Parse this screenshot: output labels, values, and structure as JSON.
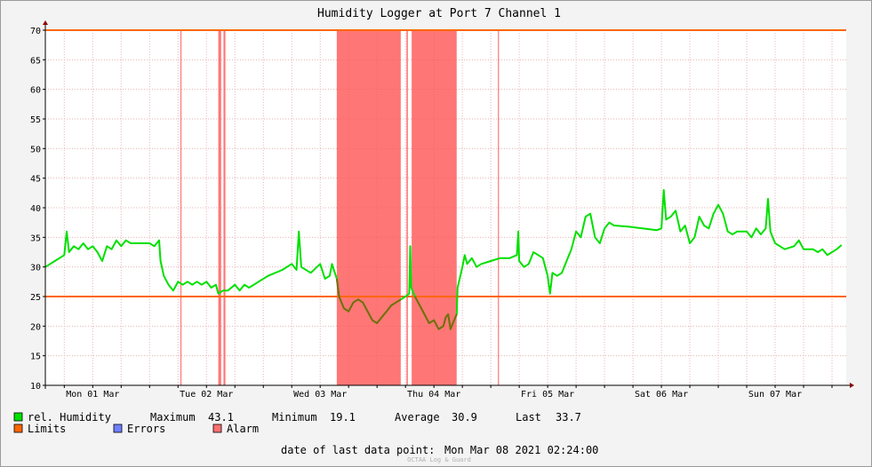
{
  "chart_data": {
    "type": "line",
    "title": "Humidity Logger at Port 7 Channel 1",
    "ylim": [
      10,
      70
    ],
    "yticks": [
      10,
      15,
      20,
      25,
      30,
      35,
      40,
      45,
      50,
      55,
      60,
      65,
      70
    ],
    "xlim_hours": [
      -10,
      159
    ],
    "xtick_labels": [
      {
        "label": "Mon 01 Mar",
        "hour": 0
      },
      {
        "label": "Tue 02 Mar",
        "hour": 24
      },
      {
        "label": "Wed 03 Mar",
        "hour": 48
      },
      {
        "label": "Thu 04 Mar",
        "hour": 72
      },
      {
        "label": "Fri 05 Mar",
        "hour": 96
      },
      {
        "label": "Sat 06 Mar",
        "hour": 120
      },
      {
        "label": "Sun 07 Mar",
        "hour": 144
      }
    ],
    "limits": [
      25,
      70
    ],
    "alarm_periods": [
      [
        18.5,
        18.5
      ],
      [
        26.5,
        27.1
      ],
      [
        27.6,
        28.0
      ],
      [
        51.5,
        65.0
      ],
      [
        66.2,
        66.5
      ],
      [
        67.3,
        76.8
      ],
      [
        85.5,
        85.5
      ]
    ],
    "series": [
      {
        "name": "rel. Humidity",
        "color": "#00e000",
        "points": [
          [
            -10,
            30.0
          ],
          [
            -8,
            31.0
          ],
          [
            -6,
            32.0
          ],
          [
            -5.5,
            36.0
          ],
          [
            -5,
            32.5
          ],
          [
            -4,
            33.5
          ],
          [
            -3,
            33.0
          ],
          [
            -2,
            34.0
          ],
          [
            -1,
            33.0
          ],
          [
            0,
            33.5
          ],
          [
            1,
            32.5
          ],
          [
            2,
            31.0
          ],
          [
            3,
            33.5
          ],
          [
            4,
            33.0
          ],
          [
            5,
            34.5
          ],
          [
            6,
            33.5
          ],
          [
            7,
            34.5
          ],
          [
            8,
            34.0
          ],
          [
            10,
            34.0
          ],
          [
            12,
            34.0
          ],
          [
            13,
            33.5
          ],
          [
            14,
            34.5
          ],
          [
            14.3,
            31.0
          ],
          [
            15,
            28.5
          ],
          [
            16,
            27.0
          ],
          [
            17,
            26.0
          ],
          [
            18,
            27.5
          ],
          [
            19,
            27.0
          ],
          [
            20,
            27.5
          ],
          [
            21,
            27.0
          ],
          [
            22,
            27.5
          ],
          [
            23,
            27.0
          ],
          [
            24,
            27.5
          ],
          [
            25,
            26.5
          ],
          [
            26,
            27.0
          ],
          [
            26.5,
            25.5
          ],
          [
            27.5,
            26.0
          ],
          [
            28.5,
            26.0
          ],
          [
            30,
            27.0
          ],
          [
            31,
            26.0
          ],
          [
            32,
            27.0
          ],
          [
            33,
            26.5
          ],
          [
            34,
            27.0
          ],
          [
            35,
            27.5
          ],
          [
            37,
            28.5
          ],
          [
            40,
            29.5
          ],
          [
            42,
            30.5
          ],
          [
            43,
            29.5
          ],
          [
            43.5,
            36.0
          ],
          [
            44,
            30.0
          ],
          [
            46,
            29.0
          ],
          [
            48,
            30.5
          ],
          [
            49,
            28.0
          ],
          [
            50,
            28.5
          ],
          [
            50.5,
            30.5
          ],
          [
            51.5,
            28.0
          ],
          [
            52,
            25.0
          ],
          [
            53,
            23.0
          ],
          [
            54,
            22.5
          ],
          [
            55,
            24.0
          ],
          [
            56,
            24.5
          ],
          [
            57,
            24.0
          ],
          [
            58,
            22.5
          ],
          [
            59,
            21.0
          ],
          [
            60,
            20.5
          ],
          [
            61,
            21.5
          ],
          [
            62,
            22.5
          ],
          [
            63,
            23.5
          ],
          [
            64,
            24.0
          ],
          [
            65,
            24.5
          ],
          [
            66,
            25.0
          ],
          [
            66.8,
            25.5
          ],
          [
            67,
            33.5
          ],
          [
            67.2,
            26.5
          ],
          [
            68,
            25.0
          ],
          [
            69,
            23.5
          ],
          [
            70,
            22.0
          ],
          [
            71,
            20.5
          ],
          [
            72,
            21.0
          ],
          [
            73,
            19.5
          ],
          [
            74,
            20.0
          ],
          [
            74.5,
            21.5
          ],
          [
            75,
            22.0
          ],
          [
            75.5,
            19.5
          ],
          [
            76,
            20.5
          ],
          [
            76.8,
            22.0
          ],
          [
            77,
            26.5
          ],
          [
            78,
            30.0
          ],
          [
            78.5,
            32.0
          ],
          [
            79,
            30.5
          ],
          [
            80,
            31.5
          ],
          [
            81,
            30.0
          ],
          [
            82,
            30.5
          ],
          [
            84,
            31.0
          ],
          [
            86,
            31.5
          ],
          [
            88,
            31.5
          ],
          [
            89.5,
            32.0
          ],
          [
            89.8,
            36.0
          ],
          [
            90,
            31.0
          ],
          [
            91,
            30.0
          ],
          [
            92,
            30.5
          ],
          [
            93,
            32.5
          ],
          [
            94,
            32.0
          ],
          [
            95,
            31.5
          ],
          [
            96,
            28.5
          ],
          [
            96.5,
            25.5
          ],
          [
            97,
            29.0
          ],
          [
            98,
            28.5
          ],
          [
            99,
            29.0
          ],
          [
            100,
            31.0
          ],
          [
            101,
            33.0
          ],
          [
            102,
            36.0
          ],
          [
            103,
            35.0
          ],
          [
            104,
            38.5
          ],
          [
            105,
            39.0
          ],
          [
            106,
            35.0
          ],
          [
            107,
            34.0
          ],
          [
            108,
            36.5
          ],
          [
            109,
            37.5
          ],
          [
            110,
            37.0
          ],
          [
            113,
            36.8
          ],
          [
            116,
            36.5
          ],
          [
            119,
            36.2
          ],
          [
            120,
            36.5
          ],
          [
            120.5,
            43.0
          ],
          [
            121,
            38.0
          ],
          [
            122,
            38.5
          ],
          [
            123,
            39.5
          ],
          [
            124,
            36.0
          ],
          [
            125,
            37.0
          ],
          [
            126,
            34.0
          ],
          [
            127,
            35.0
          ],
          [
            128,
            38.5
          ],
          [
            129,
            37.0
          ],
          [
            130,
            36.5
          ],
          [
            131,
            39.0
          ],
          [
            132,
            40.5
          ],
          [
            133,
            39.0
          ],
          [
            134,
            36.0
          ],
          [
            135,
            35.5
          ],
          [
            136,
            36.0
          ],
          [
            138,
            36.0
          ],
          [
            139,
            35.0
          ],
          [
            140,
            36.5
          ],
          [
            141,
            35.5
          ],
          [
            142,
            36.5
          ],
          [
            142.5,
            41.5
          ],
          [
            143,
            36.0
          ],
          [
            144,
            34.0
          ],
          [
            145,
            33.5
          ],
          [
            146,
            33.0
          ],
          [
            148,
            33.5
          ],
          [
            149,
            34.5
          ],
          [
            150,
            33.0
          ],
          [
            152,
            33.0
          ],
          [
            153,
            32.5
          ],
          [
            154,
            33.0
          ],
          [
            155,
            32.0
          ],
          [
            156,
            32.5
          ],
          [
            157,
            33.0
          ],
          [
            158,
            33.7
          ]
        ]
      }
    ],
    "limit_color": "#ff6600",
    "alarm_color": "#ff5050",
    "errors_color": "#6f7fff",
    "dim_color": "#7a6a10"
  },
  "legend": {
    "humidity_label": "rel. Humidity",
    "maximum_label": "Maximum",
    "maximum_value": "43.1",
    "minimum_label": "Minimum",
    "minimum_value": "19.1",
    "average_label": "Average",
    "average_value": "30.9",
    "last_label": "Last",
    "last_value": "33.7",
    "limits_label": "Limits",
    "errors_label": "Errors",
    "alarm_label": "Alarm"
  },
  "footer": {
    "last_point_label": "date of last data point:",
    "last_point_value": "Mon Mar 08 2021 02:24:00",
    "credit": "OCTAA Log & Guard"
  }
}
